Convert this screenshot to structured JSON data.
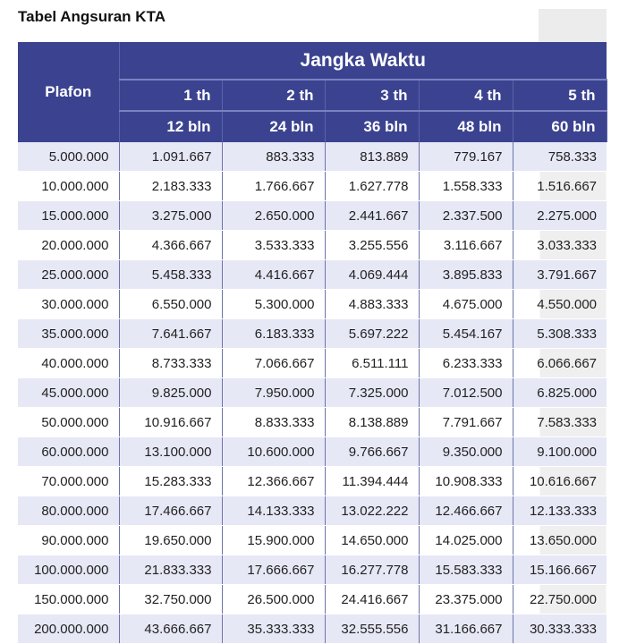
{
  "title": "Tabel Angsuran KTA",
  "header": {
    "plafon": "Plafon",
    "group": "Jangka Waktu",
    "years": [
      "1 th",
      "2 th",
      "3 th",
      "4 th",
      "5 th"
    ],
    "months": [
      "12 bln",
      "24 bln",
      "36 bln",
      "48 bln",
      "60 bln"
    ]
  },
  "rows": [
    [
      "5.000.000",
      "1.091.667",
      "883.333",
      "813.889",
      "779.167",
      "758.333"
    ],
    [
      "10.000.000",
      "2.183.333",
      "1.766.667",
      "1.627.778",
      "1.558.333",
      "1.516.667"
    ],
    [
      "15.000.000",
      "3.275.000",
      "2.650.000",
      "2.441.667",
      "2.337.500",
      "2.275.000"
    ],
    [
      "20.000.000",
      "4.366.667",
      "3.533.333",
      "3.255.556",
      "3.116.667",
      "3.033.333"
    ],
    [
      "25.000.000",
      "5.458.333",
      "4.416.667",
      "4.069.444",
      "3.895.833",
      "3.791.667"
    ],
    [
      "30.000.000",
      "6.550.000",
      "5.300.000",
      "4.883.333",
      "4.675.000",
      "4.550.000"
    ],
    [
      "35.000.000",
      "7.641.667",
      "6.183.333",
      "5.697.222",
      "5.454.167",
      "5.308.333"
    ],
    [
      "40.000.000",
      "8.733.333",
      "7.066.667",
      "6.511.111",
      "6.233.333",
      "6.066.667"
    ],
    [
      "45.000.000",
      "9.825.000",
      "7.950.000",
      "7.325.000",
      "7.012.500",
      "6.825.000"
    ],
    [
      "50.000.000",
      "10.916.667",
      "8.833.333",
      "8.138.889",
      "7.791.667",
      "7.583.333"
    ],
    [
      "60.000.000",
      "13.100.000",
      "10.600.000",
      "9.766.667",
      "9.350.000",
      "9.100.000"
    ],
    [
      "70.000.000",
      "15.283.333",
      "12.366.667",
      "11.394.444",
      "10.908.333",
      "10.616.667"
    ],
    [
      "80.000.000",
      "17.466.667",
      "14.133.333",
      "13.022.222",
      "12.466.667",
      "12.133.333"
    ],
    [
      "90.000.000",
      "19.650.000",
      "15.900.000",
      "14.650.000",
      "14.025.000",
      "13.650.000"
    ],
    [
      "100.000.000",
      "21.833.333",
      "17.666.667",
      "16.277.778",
      "15.583.333",
      "15.166.667"
    ],
    [
      "150.000.000",
      "32.750.000",
      "26.500.000",
      "24.416.667",
      "23.375.000",
      "22.750.000"
    ],
    [
      "200.000.000",
      "43.666.667",
      "35.333.333",
      "32.555.556",
      "31.166.667",
      "30.333.333"
    ]
  ]
}
